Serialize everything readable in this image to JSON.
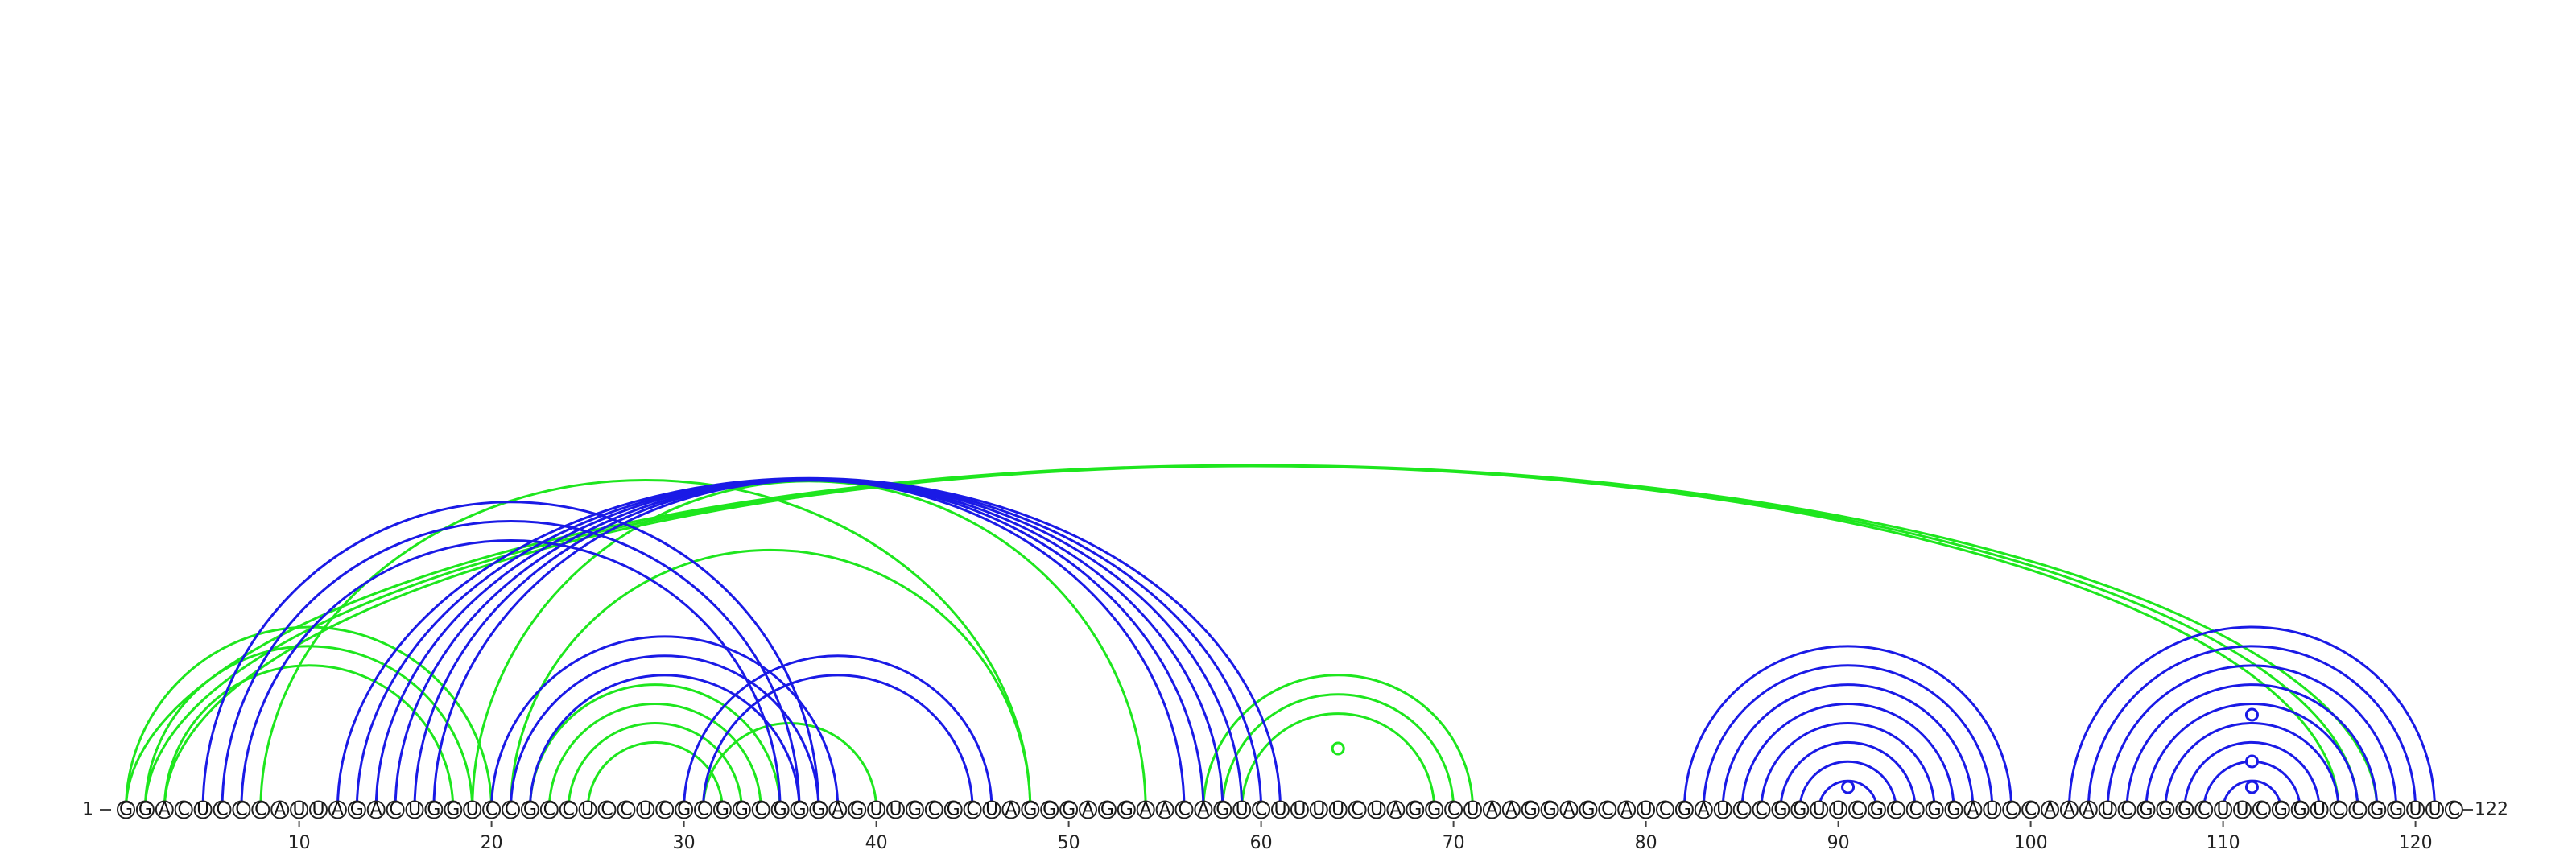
{
  "chart_data": {
    "type": "arc",
    "sequence": "GGACUCCCAUUAGACUGGUCCGCCUCCUCGCGGCGGGAGUUGCGCUAGGGAGGAACAGUCUUUUCUAGGCUAAGGAGCAUCGAUCCGGUUCGCCGGAUCCAAAUCGGGCUUCGGUCCGGUUC",
    "length": 122,
    "start_label": "1",
    "end_label": "122",
    "tick_labels": [
      "10",
      "20",
      "30",
      "40",
      "50",
      "60",
      "70",
      "80",
      "90",
      "100",
      "110",
      "120"
    ],
    "colors": {
      "blue": "#1a1ae6",
      "green": "#1ee61e"
    },
    "pairs": [
      {
        "color": "green",
        "i": 1,
        "j": 118
      },
      {
        "color": "green",
        "i": 2,
        "j": 117
      },
      {
        "color": "green",
        "i": 3,
        "j": 116
      },
      {
        "color": "green",
        "i": 1,
        "j": 20
      },
      {
        "color": "green",
        "i": 2,
        "j": 19
      },
      {
        "color": "green",
        "i": 3,
        "j": 18
      },
      {
        "color": "green",
        "i": 8,
        "j": 48
      },
      {
        "color": "green",
        "i": 21,
        "j": 48
      },
      {
        "color": "green",
        "i": 19,
        "j": 54
      },
      {
        "color": "green",
        "i": 22,
        "j": 35
      },
      {
        "color": "green",
        "i": 23,
        "j": 34
      },
      {
        "color": "green",
        "i": 24,
        "j": 33
      },
      {
        "color": "green",
        "i": 25,
        "j": 32
      },
      {
        "color": "green",
        "i": 31,
        "j": 40
      },
      {
        "color": "green",
        "i": 57,
        "j": 71
      },
      {
        "color": "green",
        "i": 58,
        "j": 70
      },
      {
        "color": "green",
        "i": 59,
        "j": 69
      },
      {
        "color": "blue",
        "i": 5,
        "j": 37
      },
      {
        "color": "blue",
        "i": 6,
        "j": 36
      },
      {
        "color": "blue",
        "i": 7,
        "j": 35
      },
      {
        "color": "blue",
        "i": 12,
        "j": 61
      },
      {
        "color": "blue",
        "i": 13,
        "j": 60
      },
      {
        "color": "blue",
        "i": 14,
        "j": 59
      },
      {
        "color": "blue",
        "i": 15,
        "j": 58
      },
      {
        "color": "blue",
        "i": 16,
        "j": 57
      },
      {
        "color": "blue",
        "i": 17,
        "j": 56
      },
      {
        "color": "blue",
        "i": 20,
        "j": 38
      },
      {
        "color": "blue",
        "i": 21,
        "j": 37
      },
      {
        "color": "blue",
        "i": 22,
        "j": 36
      },
      {
        "color": "blue",
        "i": 30,
        "j": 46
      },
      {
        "color": "blue",
        "i": 31,
        "j": 45
      },
      {
        "color": "blue",
        "i": 82,
        "j": 99
      },
      {
        "color": "blue",
        "i": 83,
        "j": 98
      },
      {
        "color": "blue",
        "i": 84,
        "j": 97
      },
      {
        "color": "blue",
        "i": 85,
        "j": 96
      },
      {
        "color": "blue",
        "i": 86,
        "j": 95
      },
      {
        "color": "blue",
        "i": 87,
        "j": 94
      },
      {
        "color": "blue",
        "i": 88,
        "j": 93
      },
      {
        "color": "blue",
        "i": 89,
        "j": 92
      },
      {
        "color": "blue",
        "i": 102,
        "j": 121
      },
      {
        "color": "blue",
        "i": 103,
        "j": 120
      },
      {
        "color": "blue",
        "i": 104,
        "j": 119
      },
      {
        "color": "blue",
        "i": 105,
        "j": 118
      },
      {
        "color": "blue",
        "i": 106,
        "j": 117
      },
      {
        "color": "blue",
        "i": 107,
        "j": 116
      },
      {
        "color": "blue",
        "i": 108,
        "j": 115
      },
      {
        "color": "blue",
        "i": 109,
        "j": 114
      },
      {
        "color": "blue",
        "i": 110,
        "j": 113
      }
    ],
    "loop_markers": [
      {
        "color": "green",
        "pos": 64
      },
      {
        "color": "blue",
        "pos": 90.5
      },
      {
        "color": "blue",
        "pos": 111.5
      },
      {
        "color": "blue",
        "pos": 111.5
      },
      {
        "color": "blue",
        "pos": 111.5
      }
    ]
  }
}
